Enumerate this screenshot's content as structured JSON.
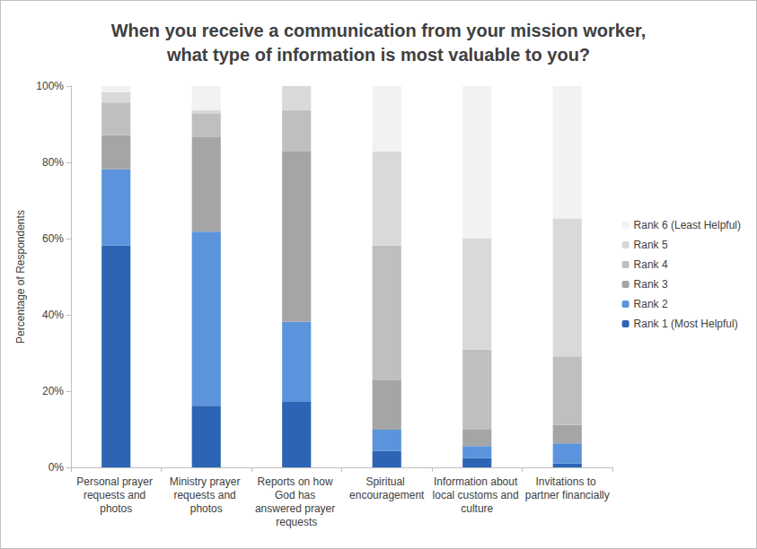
{
  "chart_data": {
    "type": "bar",
    "title": "When you receive a communication from your mission worker,\nwhat type of information is most valuable to you?",
    "y_label": "Percentage of Respondents",
    "categories": [
      "Personal prayer requests and photos",
      "Ministry prayer requests and photos",
      "Reports on how God has answered prayer requests",
      "Spiritual encouragement",
      "Information about local customs and culture",
      "Invitations to partner financially"
    ],
    "series": [
      {
        "name": "Rank 1 (Most Helpful)",
        "color": "#2e64b4",
        "values": [
          58.2,
          16.2,
          17.2,
          4.3,
          2.5,
          1.0
        ]
      },
      {
        "name": "Rank 2",
        "color": "#5b94dc",
        "values": [
          20.0,
          45.6,
          21.0,
          5.6,
          3.1,
          5.3
        ]
      },
      {
        "name": "Rank 3",
        "color": "#a5a5a5",
        "values": [
          8.9,
          24.8,
          44.6,
          12.9,
          4.3,
          4.8
        ]
      },
      {
        "name": "Rank 4",
        "color": "#bfbfbf",
        "values": [
          8.6,
          6.3,
          10.9,
          35.4,
          21.0,
          18.0
        ]
      },
      {
        "name": "Rank 5",
        "color": "#d9d9d9",
        "values": [
          2.8,
          0.8,
          6.3,
          24.6,
          29.1,
          36.2
        ]
      },
      {
        "name": "Rank 6 (Least Helpful)",
        "color": "#f2f2f2",
        "values": [
          1.5,
          6.3,
          0,
          17.2,
          40.0,
          34.7
        ]
      }
    ],
    "ylim": [
      0,
      100
    ],
    "yticks": [
      {
        "value": 0,
        "label": "0%"
      },
      {
        "value": 20,
        "label": "20%"
      },
      {
        "value": 40,
        "label": "40%"
      },
      {
        "value": 60,
        "label": "60%"
      },
      {
        "value": 80,
        "label": "80%"
      },
      {
        "value": 100,
        "label": "100%"
      }
    ],
    "stacked": true,
    "grid": false,
    "legend": "right"
  }
}
